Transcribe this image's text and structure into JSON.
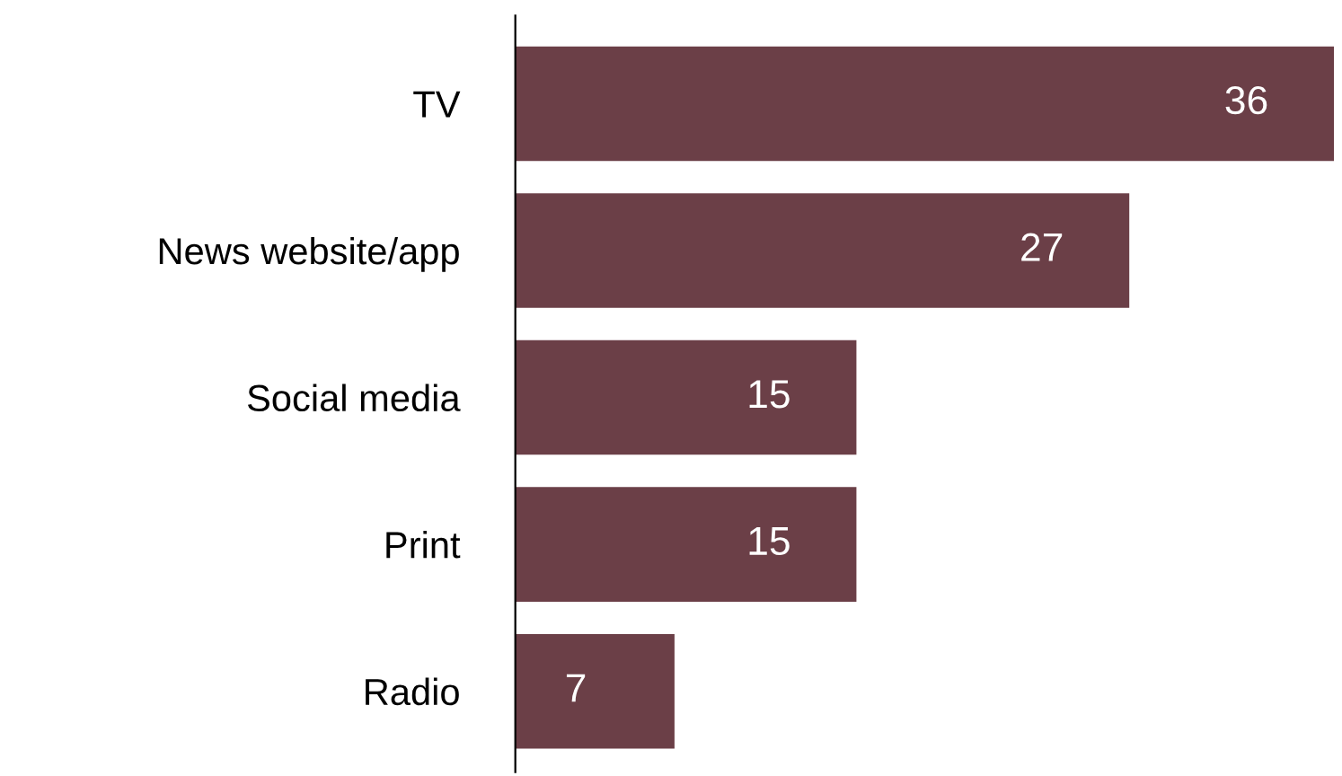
{
  "chart_data": {
    "type": "bar",
    "orientation": "horizontal",
    "categories": [
      "TV",
      "News website/app",
      "Social media",
      "Print",
      "Radio"
    ],
    "values": [
      36,
      27,
      15,
      15,
      7
    ],
    "color": "#6b3f47",
    "data_labels": true,
    "grid": false,
    "legend": false
  }
}
